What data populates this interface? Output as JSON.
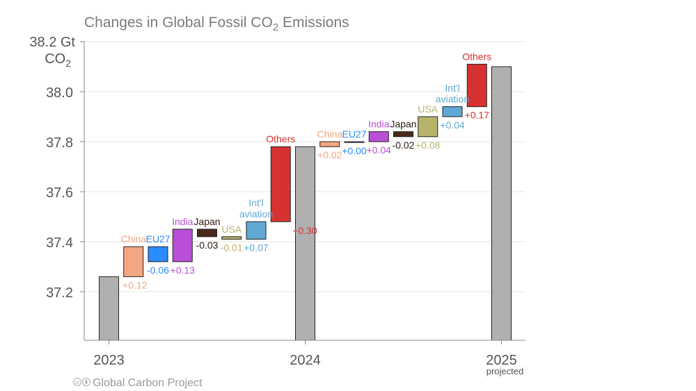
{
  "chart_data": {
    "type": "waterfall",
    "title_main": "Changes in Global Fossil CO",
    "title_sub": "2",
    "title_tail": " Emissions",
    "unit_line1": "38.2 Gt",
    "unit_line2_main": "CO",
    "unit_line2_sub": "2",
    "y_range": [
      37.0,
      38.22
    ],
    "y_ticks": [
      {
        "value": 37.2,
        "label": "37.2"
      },
      {
        "value": 37.4,
        "label": "37.4"
      },
      {
        "value": 37.6,
        "label": "37.6"
      },
      {
        "value": 37.8,
        "label": "37.8"
      },
      {
        "value": 38.0,
        "label": "38.0"
      }
    ],
    "y_top_tick": 38.2,
    "x_labels": [
      {
        "text": "2023",
        "at": 0
      },
      {
        "text": "2024",
        "at": 8
      },
      {
        "text": "2025",
        "at": 16,
        "sub": "projected"
      }
    ],
    "totals": [
      {
        "name": "2023",
        "value": 37.26
      },
      {
        "name": "2024",
        "value": 37.78
      },
      {
        "name": "2025",
        "value": 38.1
      }
    ],
    "changes": [
      {
        "label": "China",
        "change": "+0.12",
        "delta": 0.12,
        "color": "#f4a582",
        "labelColor": "#f4a582",
        "deltaColor": "#f4a582",
        "labelPos": "above",
        "deltaPos": "below-right"
      },
      {
        "label": "EU27",
        "change": "-0.06",
        "delta": -0.06,
        "color": "#2b8cff",
        "labelColor": "#2b8cff",
        "deltaColor": "#2b8cff",
        "labelPos": "above",
        "deltaPos": "below"
      },
      {
        "label": "India",
        "change": "+0.13",
        "delta": 0.13,
        "color": "#b84fd6",
        "labelColor": "#b84fd6",
        "deltaColor": "#b84fd6",
        "labelPos": "above",
        "deltaPos": "below"
      },
      {
        "label": "Japan",
        "change": "-0.03",
        "delta": -0.03,
        "color": "#4a2a18",
        "labelColor": "#2a1a10",
        "deltaColor": "#2a1a10",
        "labelPos": "above",
        "deltaPos": "below"
      },
      {
        "label": "USA",
        "change": "-0.01",
        "delta": -0.01,
        "color": "#b8b36a",
        "labelColor": "#b8b36a",
        "deltaColor": "#b8b36a",
        "labelPos": "above",
        "deltaPos": "below"
      },
      {
        "label": "Int'l aviation",
        "lines": [
          "Int'l",
          "aviation"
        ],
        "change": "+0.07",
        "delta": 0.07,
        "color": "#5fa8d3",
        "labelColor": "#5fa8d3",
        "deltaColor": "#5fa8d3",
        "labelPos": "above",
        "deltaPos": "below"
      },
      {
        "label": "Others",
        "change": "+0.30",
        "delta": 0.3,
        "color": "#d73232",
        "labelColor": "#d73232",
        "deltaColor": "#d73232",
        "labelPos": "above",
        "deltaPos": "right-bottom"
      },
      {
        "label": "China",
        "change": "+0.02",
        "delta": 0.02,
        "color": "#f4a582",
        "labelColor": "#f4a582",
        "deltaColor": "#f4a582",
        "labelPos": "above",
        "deltaPos": "below"
      },
      {
        "label": "EU27",
        "change": "+0.00",
        "delta": 0.0,
        "color": "#2b8cff",
        "labelColor": "#2b8cff",
        "deltaColor": "#2b8cff",
        "labelPos": "above",
        "deltaPos": "below"
      },
      {
        "label": "India",
        "change": "+0.04",
        "delta": 0.04,
        "color": "#b84fd6",
        "labelColor": "#b84fd6",
        "deltaColor": "#b84fd6",
        "labelPos": "above",
        "deltaPos": "below"
      },
      {
        "label": "Japan",
        "change": "-0.02",
        "delta": -0.02,
        "color": "#4a2a18",
        "labelColor": "#2a1a10",
        "deltaColor": "#2a1a10",
        "labelPos": "above",
        "deltaPos": "below"
      },
      {
        "label": "USA",
        "change": "+0.08",
        "delta": 0.08,
        "color": "#b8b36a",
        "labelColor": "#b8b36a",
        "deltaColor": "#b8b36a",
        "labelPos": "above",
        "deltaPos": "below"
      },
      {
        "label": "Int'l aviation",
        "lines": [
          "Int'l",
          "aviation"
        ],
        "change": "+0.04",
        "delta": 0.04,
        "color": "#5fa8d3",
        "labelColor": "#5fa8d3",
        "deltaColor": "#5fa8d3",
        "labelPos": "above",
        "deltaPos": "below"
      },
      {
        "label": "Others",
        "change": "+0.17",
        "delta": 0.17,
        "color": "#d73232",
        "labelColor": "#d73232",
        "deltaColor": "#d73232",
        "labelPos": "above",
        "deltaPos": "below"
      }
    ],
    "total_color": "#b0b0b0",
    "footer": "Global Carbon Project",
    "footer_cc": "cc"
  }
}
